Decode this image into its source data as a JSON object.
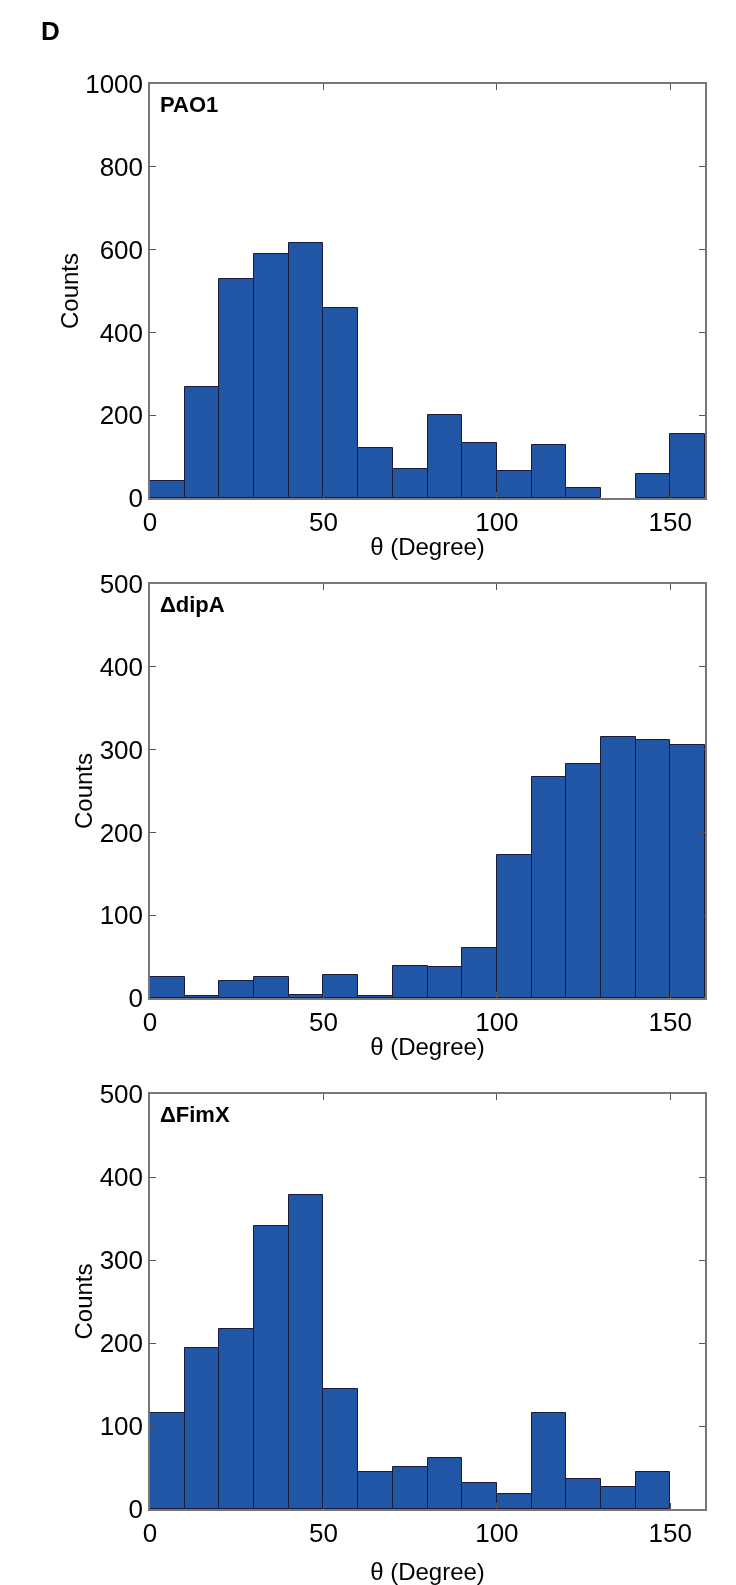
{
  "chart_data": [
    {
      "type": "histogram",
      "title": "PAO1",
      "xlabel": "θ (Degree)",
      "ylabel": "Counts",
      "annotations": [
        "D"
      ],
      "color": "#2155a6",
      "bins": [
        0,
        10,
        20,
        30,
        40,
        50,
        60,
        70,
        80,
        90,
        100,
        110,
        120,
        130,
        140,
        150,
        160
      ],
      "values": [
        42,
        269,
        528,
        590,
        615,
        459,
        121,
        71,
        201,
        132,
        66,
        129,
        25,
        0,
        57,
        154
      ],
      "xlim": [
        0,
        160
      ],
      "xticks": [
        0,
        50,
        100,
        150
      ],
      "ylim": [
        0,
        1000
      ],
      "yticks": [
        0,
        200,
        400,
        600,
        800,
        1000
      ]
    },
    {
      "type": "histogram",
      "title": "ΔdipA",
      "xlabel": "θ (Degree)",
      "ylabel": "Counts",
      "color": "#2155a6",
      "bins": [
        0,
        10,
        20,
        30,
        40,
        50,
        60,
        70,
        80,
        90,
        100,
        110,
        120,
        130,
        140,
        150,
        160
      ],
      "values": [
        25,
        2,
        20,
        25,
        4,
        28,
        2,
        39,
        37,
        60,
        173,
        267,
        283,
        315,
        312,
        305
      ],
      "xlim": [
        0,
        160
      ],
      "xticks": [
        0,
        50,
        100,
        150
      ],
      "ylim": [
        0,
        500
      ],
      "yticks": [
        0,
        100,
        200,
        300,
        400,
        500
      ]
    },
    {
      "type": "histogram",
      "title": "ΔFimX",
      "xlabel": "θ (Degree)",
      "ylabel": "Counts",
      "color": "#2155a6",
      "bins": [
        0,
        10,
        20,
        30,
        40,
        50,
        60,
        70,
        80,
        90,
        100,
        110,
        120,
        130,
        140,
        150
      ],
      "values": [
        116,
        194,
        217,
        341,
        378,
        145,
        44,
        51,
        61,
        31,
        18,
        116,
        36,
        26,
        44
      ],
      "xlim": [
        0,
        160
      ],
      "xticks": [
        0,
        50,
        100,
        150
      ],
      "ylim": [
        0,
        500
      ],
      "yticks": [
        0,
        100,
        200,
        300,
        400,
        500
      ]
    }
  ]
}
